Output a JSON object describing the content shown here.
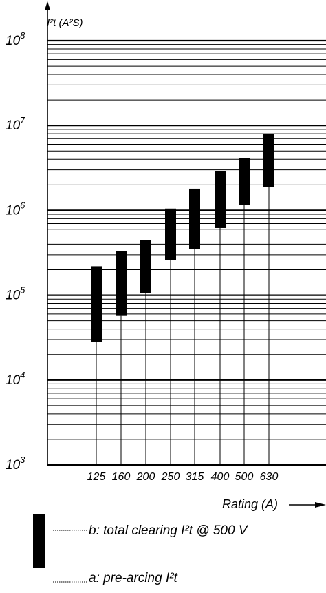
{
  "chart_data": {
    "type": "bar",
    "y_scale": "log",
    "ylim": [
      1000,
      100000000
    ],
    "ylabel": "I²t (A²S)",
    "xlabel": "Rating (A)",
    "y_tick_labels": [
      {
        "base": "10",
        "exp": "3"
      },
      {
        "base": "10",
        "exp": "4"
      },
      {
        "base": "10",
        "exp": "5"
      },
      {
        "base": "10",
        "exp": "6"
      },
      {
        "base": "10",
        "exp": "7"
      },
      {
        "base": "10",
        "exp": "8"
      }
    ],
    "categories": [
      "125",
      "160",
      "200",
      "250",
      "315",
      "400",
      "500",
      "630"
    ],
    "series": [
      {
        "name": "a: pre-arcing I²t",
        "values": [
          28000,
          57000,
          105000,
          260000,
          350000,
          620000,
          1150000,
          1900000
        ]
      },
      {
        "name": "b: total clearing I²t @ 500 V",
        "values": [
          220000,
          330000,
          450000,
          1050000,
          1800000,
          2900000,
          4100000,
          8000000
        ]
      }
    ],
    "grid": true,
    "legend": {
      "position": "bottom-left",
      "b_label": "b: total clearing I²t @ 500 V",
      "a_label": "a: pre-arcing I²t"
    },
    "colors": {
      "bar": "#000000",
      "grid": "#000000"
    }
  }
}
